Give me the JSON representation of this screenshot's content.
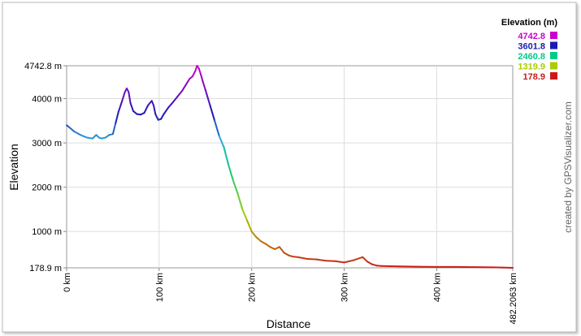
{
  "chart_data": {
    "type": "line",
    "xlabel": "Distance",
    "ylabel": "Elevation",
    "xlim": [
      0,
      482.2063
    ],
    "ylim": [
      178.9,
      4742.8
    ],
    "x_ticks": [
      {
        "value": 0,
        "label": "0 km"
      },
      {
        "value": 100,
        "label": "100 km"
      },
      {
        "value": 200,
        "label": "200 km"
      },
      {
        "value": 300,
        "label": "300 km"
      },
      {
        "value": 400,
        "label": "400 km"
      },
      {
        "value": 482.2063,
        "label": "482.2063 km"
      }
    ],
    "y_ticks": [
      {
        "value": 178.9,
        "label": "178.9 m"
      },
      {
        "value": 1000,
        "label": "1000 m"
      },
      {
        "value": 2000,
        "label": "2000 m"
      },
      {
        "value": 3000,
        "label": "3000 m"
      },
      {
        "value": 4000,
        "label": "4000 m"
      },
      {
        "value": 4742.8,
        "label": "4742.8 m"
      }
    ],
    "grid": true,
    "legend": {
      "title": "Elevation (m)",
      "placement": "top-right",
      "entries": [
        {
          "label": "4742.8",
          "color": "#cc00cc"
        },
        {
          "label": "3601.8",
          "color": "#1a1ab3"
        },
        {
          "label": "2460.8",
          "color": "#00cc88"
        },
        {
          "label": "1319.9",
          "color": "#aacc00"
        },
        {
          "label": "178.9",
          "color": "#cc1a1a"
        }
      ]
    },
    "series": [
      {
        "x": [
          0,
          3,
          8,
          15,
          22,
          28,
          32,
          35,
          38,
          42,
          46,
          50,
          53,
          56,
          60,
          63,
          65,
          67,
          69,
          72,
          76,
          80,
          84,
          88,
          92,
          94,
          96,
          99,
          102,
          105,
          110,
          115,
          120,
          125,
          130,
          133,
          136,
          139,
          141,
          143,
          145,
          147,
          150,
          155,
          160,
          165,
          170,
          175,
          180,
          185,
          190,
          195,
          200,
          205,
          210,
          215,
          220,
          225,
          230,
          235,
          240,
          245,
          250,
          260,
          270,
          280,
          290,
          300,
          310,
          320,
          325,
          330,
          335,
          340,
          350,
          360,
          380,
          400,
          420,
          440,
          460,
          470,
          482.2063
        ],
        "y": [
          3400,
          3350,
          3260,
          3180,
          3120,
          3100,
          3180,
          3120,
          3100,
          3120,
          3180,
          3200,
          3450,
          3700,
          3950,
          4150,
          4230,
          4150,
          3900,
          3720,
          3650,
          3640,
          3680,
          3850,
          3950,
          3850,
          3650,
          3520,
          3540,
          3650,
          3800,
          3920,
          4050,
          4180,
          4350,
          4450,
          4500,
          4620,
          4742.8,
          4680,
          4550,
          4400,
          4200,
          3850,
          3500,
          3150,
          2900,
          2500,
          2150,
          1850,
          1500,
          1250,
          1000,
          870,
          780,
          720,
          650,
          600,
          650,
          520,
          460,
          430,
          420,
          380,
          370,
          340,
          330,
          300,
          350,
          420,
          320,
          260,
          230,
          220,
          215,
          210,
          205,
          200,
          200,
          195,
          190,
          185,
          178.9
        ]
      }
    ],
    "credit": "created by GPSVisualizer.com"
  }
}
